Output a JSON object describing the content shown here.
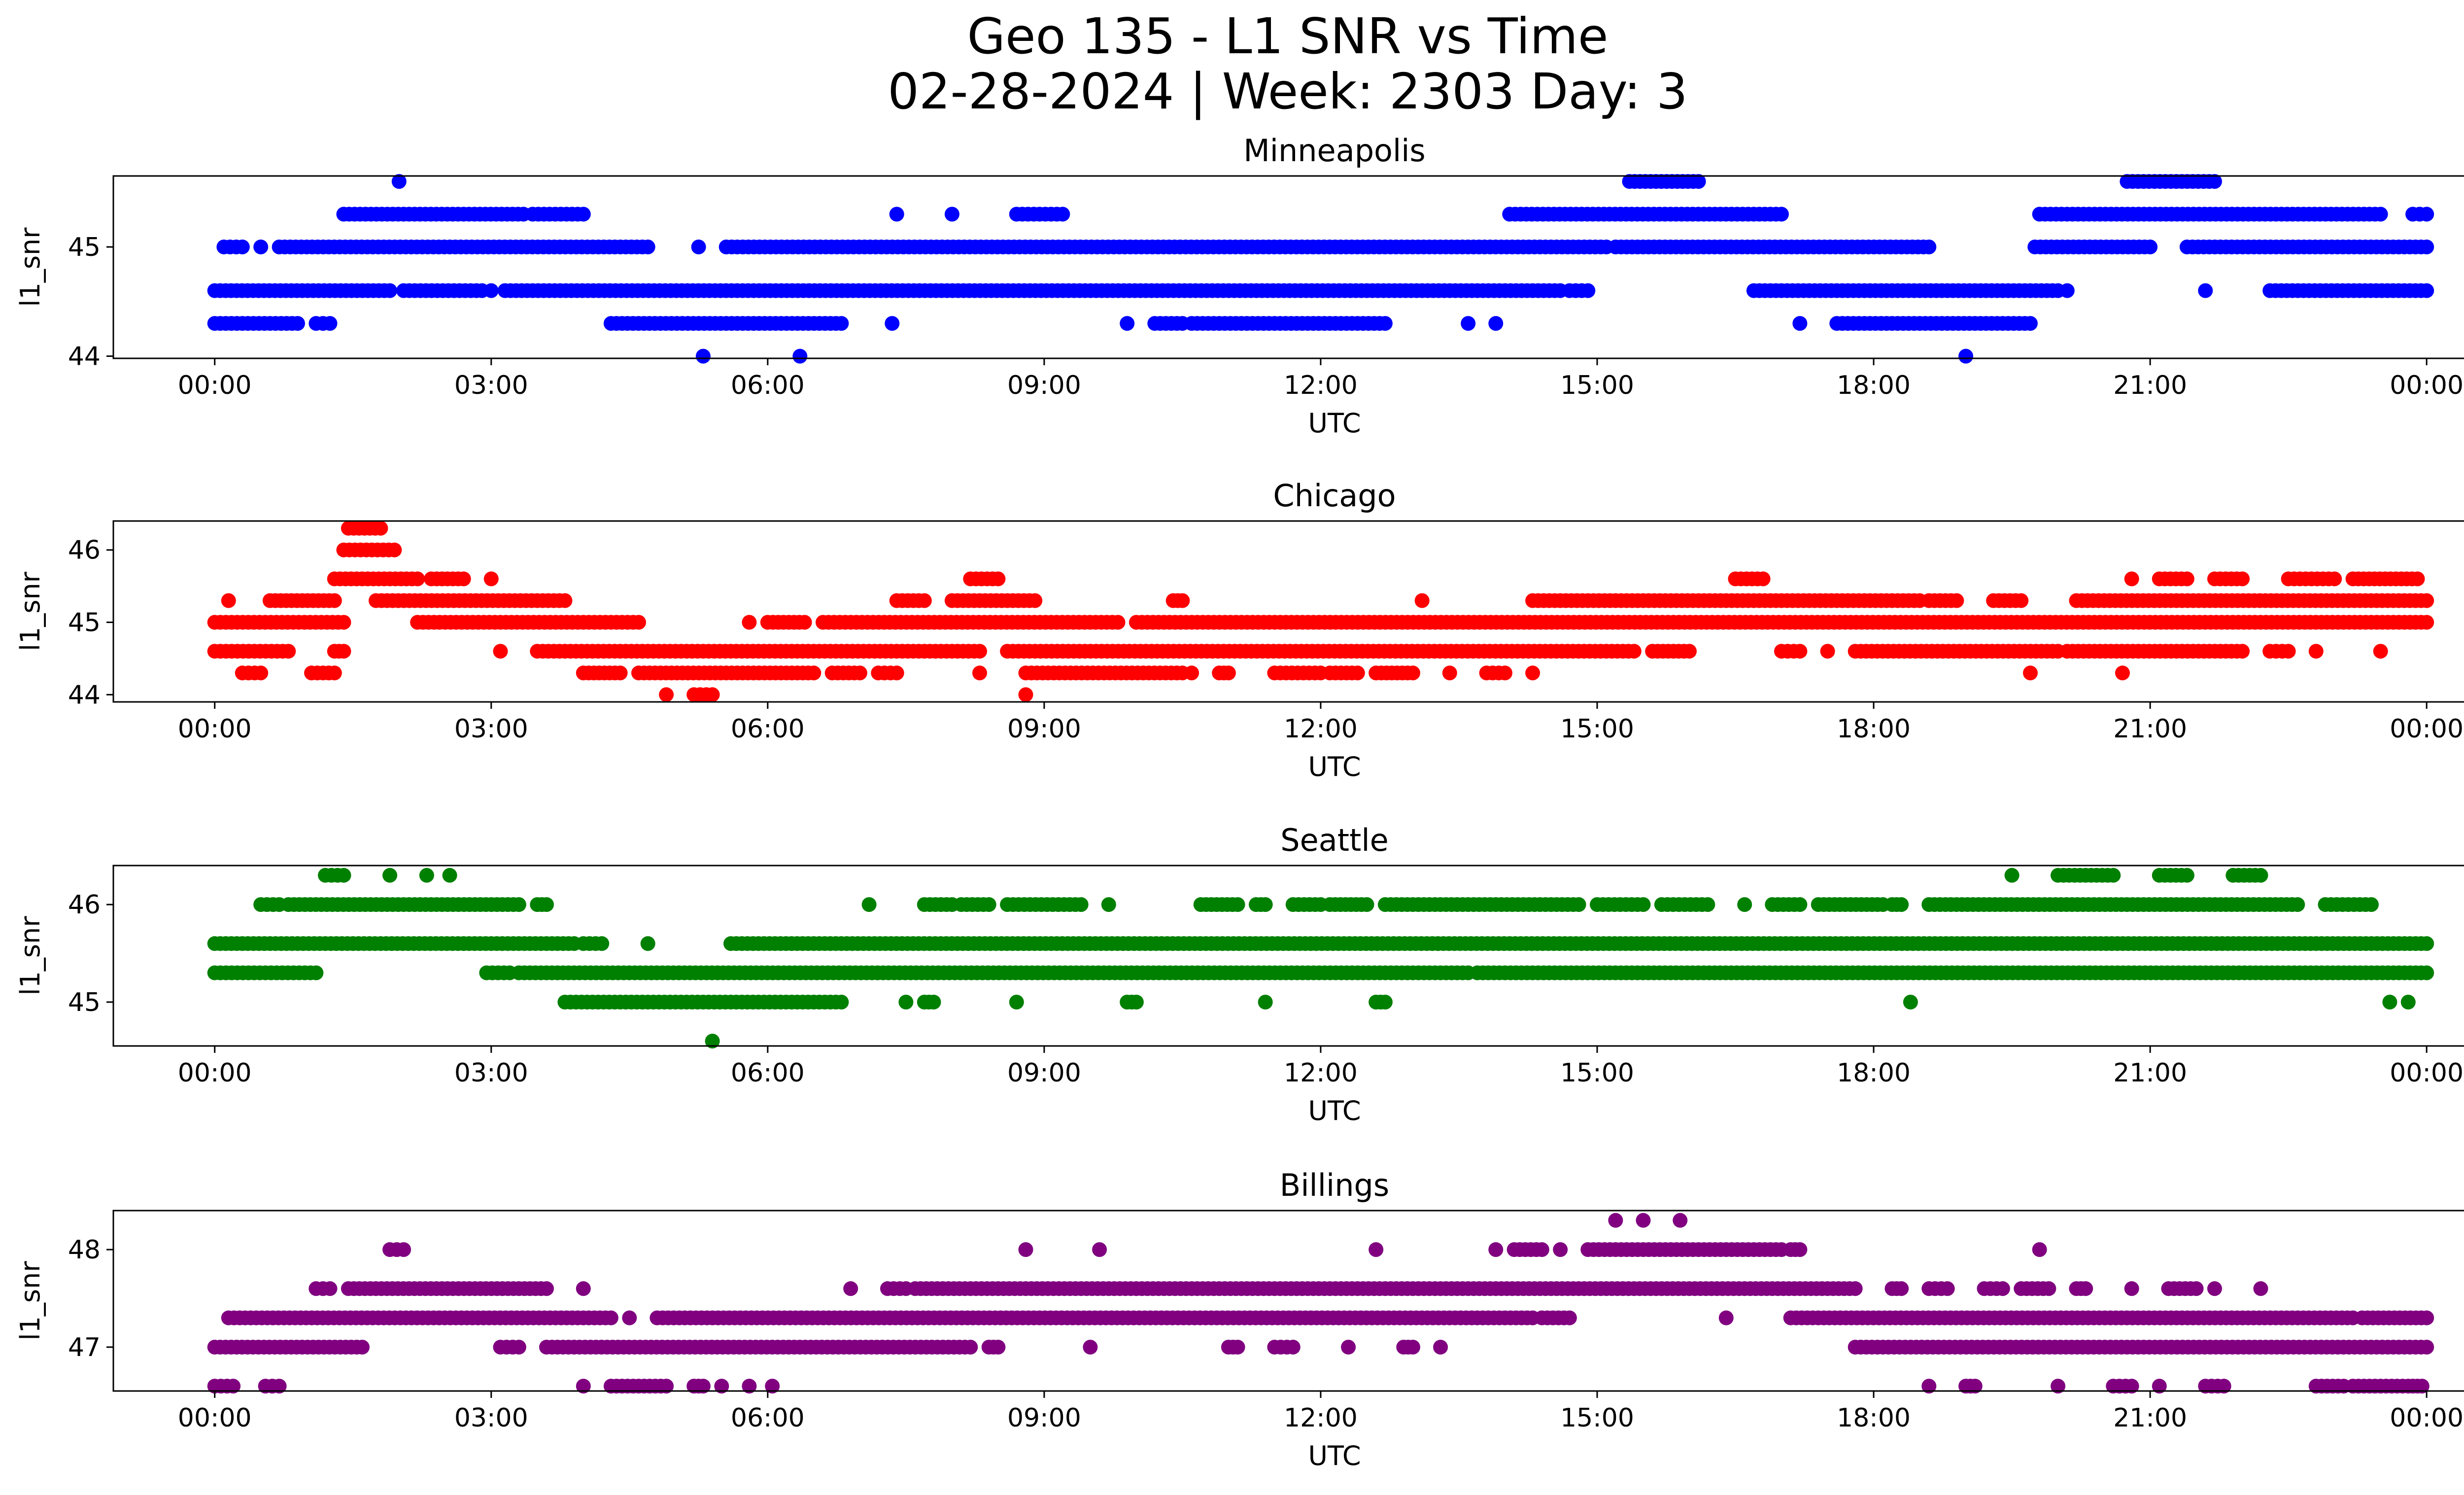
{
  "title_lines": [
    "Geo 135 - L1 SNR vs Time",
    "02-28-2024 | Week: 2303 Day: 3"
  ],
  "chart_data": [
    {
      "type": "scatter",
      "title": "Minneapolis",
      "color": "#0000ff",
      "xlabel": "UTC",
      "ylabel": "l1_snr",
      "x_unit": "hours UTC",
      "xlim": [
        -1.1,
        25.4
      ],
      "ylim": [
        43.98,
        45.65
      ],
      "x_ticks": [
        0,
        3,
        6,
        9,
        12,
        15,
        18,
        21,
        24
      ],
      "x_tick_labels": [
        "00:00",
        "03:00",
        "06:00",
        "09:00",
        "12:00",
        "15:00",
        "18:00",
        "21:00",
        "00:00"
      ],
      "y_ticks": [
        44,
        45
      ],
      "y_tick_labels": [
        "44",
        "45"
      ],
      "runs": [
        {
          "y": 45.6,
          "segments": [
            [
              2.0,
              2.0
            ],
            [
              15.35,
              16.1
            ],
            [
              20.75,
              21.7
            ]
          ]
        },
        {
          "y": 45.3,
          "segments": [
            [
              1.4,
              3.35
            ],
            [
              3.45,
              4.0
            ],
            [
              7.4,
              7.4
            ],
            [
              8.0,
              8.0
            ],
            [
              8.7,
              9.2
            ],
            [
              14.05,
              17.0
            ],
            [
              19.8,
              23.5
            ],
            [
              23.85,
              24.0
            ]
          ]
        },
        {
          "y": 45.0,
          "segments": [
            [
              0.1,
              0.3
            ],
            [
              0.5,
              0.5
            ],
            [
              0.7,
              4.7
            ],
            [
              5.25,
              5.25
            ],
            [
              5.55,
              15.1
            ],
            [
              15.2,
              18.6
            ],
            [
              19.75,
              21.0
            ],
            [
              21.4,
              24.0
            ]
          ]
        },
        {
          "y": 44.6,
          "segments": [
            [
              0.0,
              1.9
            ],
            [
              2.05,
              2.9
            ],
            [
              3.0,
              3.0
            ],
            [
              3.15,
              14.6
            ],
            [
              14.7,
              14.9
            ],
            [
              16.7,
              20.0
            ],
            [
              20.1,
              20.1
            ],
            [
              21.6,
              21.6
            ],
            [
              22.3,
              24.0
            ]
          ]
        },
        {
          "y": 44.3,
          "segments": [
            [
              0.0,
              0.9
            ],
            [
              1.1,
              1.25
            ],
            [
              4.3,
              6.8
            ],
            [
              7.35,
              7.35
            ],
            [
              9.9,
              9.9
            ],
            [
              10.2,
              10.5
            ],
            [
              10.6,
              12.7
            ],
            [
              13.6,
              13.6
            ],
            [
              13.9,
              13.9
            ],
            [
              17.2,
              17.2
            ],
            [
              17.6,
              19.7
            ]
          ]
        },
        {
          "y": 44.0,
          "segments": [
            [
              5.3,
              5.3
            ],
            [
              6.35,
              6.35
            ],
            [
              19.0,
              19.0
            ]
          ]
        }
      ]
    },
    {
      "type": "scatter",
      "title": "Chicago",
      "color": "#ff0000",
      "xlabel": "UTC",
      "ylabel": "l1_snr",
      "x_unit": "hours UTC",
      "xlim": [
        -1.1,
        25.4
      ],
      "ylim": [
        43.9,
        46.4
      ],
      "x_ticks": [
        0,
        3,
        6,
        9,
        12,
        15,
        18,
        21,
        24
      ],
      "x_tick_labels": [
        "00:00",
        "03:00",
        "06:00",
        "09:00",
        "12:00",
        "15:00",
        "18:00",
        "21:00",
        "00:00"
      ],
      "y_ticks": [
        44,
        45,
        46
      ],
      "y_tick_labels": [
        "44",
        "45",
        "46"
      ],
      "runs": [
        {
          "y": 46.3,
          "segments": [
            [
              1.45,
              1.8
            ]
          ]
        },
        {
          "y": 46.0,
          "segments": [
            [
              1.4,
              1.95
            ]
          ]
        },
        {
          "y": 45.6,
          "segments": [
            [
              1.3,
              2.2
            ],
            [
              2.35,
              2.7
            ],
            [
              3.0,
              3.0
            ],
            [
              8.2,
              8.5
            ],
            [
              16.5,
              16.8
            ],
            [
              20.8,
              20.8
            ],
            [
              21.1,
              21.4
            ],
            [
              21.7,
              22.0
            ],
            [
              22.5,
              23.0
            ],
            [
              23.2,
              23.9
            ]
          ]
        },
        {
          "y": 45.3,
          "segments": [
            [
              0.15,
              0.15
            ],
            [
              0.6,
              1.3
            ],
            [
              1.75,
              3.8
            ],
            [
              7.4,
              7.7
            ],
            [
              8.0,
              8.9
            ],
            [
              10.4,
              10.5
            ],
            [
              13.1,
              13.1
            ],
            [
              14.3,
              18.5
            ],
            [
              18.6,
              18.9
            ],
            [
              19.3,
              19.6
            ],
            [
              20.2,
              24.0
            ]
          ]
        },
        {
          "y": 45.0,
          "segments": [
            [
              0.0,
              1.4
            ],
            [
              2.2,
              4.6
            ],
            [
              5.8,
              5.8
            ],
            [
              6.0,
              6.4
            ],
            [
              6.6,
              9.8
            ],
            [
              10.0,
              24.0
            ]
          ]
        },
        {
          "y": 44.6,
          "segments": [
            [
              0.0,
              0.8
            ],
            [
              1.3,
              1.4
            ],
            [
              3.1,
              3.1
            ],
            [
              3.5,
              8.3
            ],
            [
              8.6,
              15.4
            ],
            [
              15.6,
              16.0
            ],
            [
              17.0,
              17.2
            ],
            [
              17.5,
              17.5
            ],
            [
              17.8,
              20.0
            ],
            [
              20.1,
              22.0
            ],
            [
              22.3,
              22.5
            ],
            [
              22.8,
              22.8
            ],
            [
              23.5,
              23.5
            ]
          ]
        },
        {
          "y": 44.3,
          "segments": [
            [
              0.3,
              0.5
            ],
            [
              1.05,
              1.3
            ],
            [
              4.0,
              4.4
            ],
            [
              4.6,
              6.5
            ],
            [
              6.7,
              7.0
            ],
            [
              7.2,
              7.4
            ],
            [
              8.3,
              8.3
            ],
            [
              8.8,
              10.5
            ],
            [
              10.6,
              10.6
            ],
            [
              10.9,
              11.0
            ],
            [
              11.5,
              12.0
            ],
            [
              12.1,
              12.4
            ],
            [
              12.6,
              13.0
            ],
            [
              13.4,
              13.4
            ],
            [
              13.8,
              14.0
            ],
            [
              14.3,
              14.3
            ],
            [
              19.7,
              19.7
            ],
            [
              20.7,
              20.7
            ]
          ]
        },
        {
          "y": 44.0,
          "segments": [
            [
              4.9,
              4.9
            ],
            [
              5.2,
              5.4
            ],
            [
              8.8,
              8.8
            ]
          ]
        }
      ]
    },
    {
      "type": "scatter",
      "title": "Seattle",
      "color": "#008000",
      "xlabel": "UTC",
      "ylabel": "l1_snr",
      "x_unit": "hours UTC",
      "xlim": [
        -1.1,
        25.4
      ],
      "ylim": [
        44.55,
        46.4
      ],
      "x_ticks": [
        0,
        3,
        6,
        9,
        12,
        15,
        18,
        21,
        24
      ],
      "x_tick_labels": [
        "00:00",
        "03:00",
        "06:00",
        "09:00",
        "12:00",
        "15:00",
        "18:00",
        "21:00",
        "00:00"
      ],
      "y_ticks": [
        45,
        46
      ],
      "y_tick_labels": [
        "45",
        "46"
      ],
      "runs": [
        {
          "y": 46.3,
          "segments": [
            [
              1.2,
              1.4
            ],
            [
              1.9,
              1.9
            ],
            [
              2.3,
              2.3
            ],
            [
              2.55,
              2.55
            ],
            [
              19.5,
              19.5
            ],
            [
              20.0,
              20.6
            ],
            [
              21.1,
              21.4
            ],
            [
              21.9,
              22.2
            ]
          ]
        },
        {
          "y": 46.0,
          "segments": [
            [
              0.5,
              0.7
            ],
            [
              0.8,
              3.3
            ],
            [
              3.5,
              3.6
            ],
            [
              7.1,
              7.1
            ],
            [
              7.7,
              8.0
            ],
            [
              8.1,
              8.4
            ],
            [
              8.6,
              9.4
            ],
            [
              9.7,
              9.7
            ],
            [
              10.7,
              11.1
            ],
            [
              11.3,
              11.4
            ],
            [
              11.7,
              12.0
            ],
            [
              12.1,
              12.5
            ],
            [
              12.7,
              14.8
            ],
            [
              15.0,
              15.5
            ],
            [
              15.7,
              16.2
            ],
            [
              16.6,
              16.6
            ],
            [
              16.9,
              17.2
            ],
            [
              17.4,
              18.1
            ],
            [
              18.2,
              18.3
            ],
            [
              18.6,
              22.6
            ],
            [
              22.9,
              23.4
            ]
          ]
        },
        {
          "y": 45.6,
          "segments": [
            [
              0.0,
              3.9
            ],
            [
              4.0,
              4.2
            ],
            [
              4.7,
              4.7
            ],
            [
              5.6,
              24.0
            ]
          ]
        },
        {
          "y": 45.3,
          "segments": [
            [
              0.0,
              1.1
            ],
            [
              2.95,
              3.2
            ],
            [
              3.3,
              13.6
            ],
            [
              13.7,
              24.0
            ]
          ]
        },
        {
          "y": 45.0,
          "segments": [
            [
              3.8,
              6.8
            ],
            [
              7.5,
              7.5
            ],
            [
              7.7,
              7.8
            ],
            [
              8.7,
              8.7
            ],
            [
              9.9,
              10.0
            ],
            [
              11.4,
              11.4
            ],
            [
              12.6,
              12.7
            ],
            [
              18.4,
              18.4
            ],
            [
              23.6,
              23.6
            ],
            [
              23.8,
              23.8
            ]
          ]
        },
        {
          "y": 44.6,
          "segments": [
            [
              5.4,
              5.4
            ]
          ]
        }
      ]
    },
    {
      "type": "scatter",
      "title": "Billings",
      "color": "#800080",
      "xlabel": "UTC",
      "ylabel": "l1_snr",
      "x_unit": "hours UTC",
      "xlim": [
        -1.1,
        25.4
      ],
      "ylim": [
        46.55,
        48.4
      ],
      "x_ticks": [
        0,
        3,
        6,
        9,
        12,
        15,
        18,
        21,
        24
      ],
      "x_tick_labels": [
        "00:00",
        "03:00",
        "06:00",
        "09:00",
        "12:00",
        "15:00",
        "18:00",
        "21:00",
        "00:00"
      ],
      "y_ticks": [
        47,
        48
      ],
      "y_tick_labels": [
        "47",
        "48"
      ],
      "runs": [
        {
          "y": 48.3,
          "segments": [
            [
              15.2,
              15.2
            ],
            [
              15.5,
              15.5
            ],
            [
              15.9,
              15.9
            ]
          ]
        },
        {
          "y": 48.0,
          "segments": [
            [
              1.9,
              2.05
            ],
            [
              8.8,
              8.8
            ],
            [
              9.6,
              9.6
            ],
            [
              12.6,
              12.6
            ],
            [
              13.9,
              13.9
            ],
            [
              14.1,
              14.4
            ],
            [
              14.6,
              14.6
            ],
            [
              14.9,
              17.0
            ],
            [
              17.1,
              17.2
            ],
            [
              19.8,
              19.8
            ]
          ]
        },
        {
          "y": 47.6,
          "segments": [
            [
              1.1,
              1.25
            ],
            [
              1.45,
              3.6
            ],
            [
              4.0,
              4.0
            ],
            [
              6.9,
              6.9
            ],
            [
              7.3,
              7.5
            ],
            [
              7.6,
              17.8
            ],
            [
              18.2,
              18.3
            ],
            [
              18.6,
              18.8
            ],
            [
              19.2,
              19.4
            ],
            [
              19.6,
              19.9
            ],
            [
              20.2,
              20.3
            ],
            [
              20.8,
              20.8
            ],
            [
              21.2,
              21.5
            ],
            [
              21.7,
              21.7
            ],
            [
              22.2,
              22.2
            ]
          ]
        },
        {
          "y": 47.3,
          "segments": [
            [
              0.15,
              4.3
            ],
            [
              4.5,
              4.5
            ],
            [
              4.8,
              14.3
            ],
            [
              14.4,
              14.7
            ],
            [
              16.4,
              16.4
            ],
            [
              17.1,
              23.2
            ],
            [
              23.3,
              24.0
            ]
          ]
        },
        {
          "y": 47.0,
          "segments": [
            [
              0.0,
              1.6
            ],
            [
              3.1,
              3.3
            ],
            [
              3.6,
              8.2
            ],
            [
              8.4,
              8.5
            ],
            [
              9.5,
              9.5
            ],
            [
              11.0,
              11.1
            ],
            [
              11.5,
              11.7
            ],
            [
              12.3,
              12.3
            ],
            [
              12.9,
              13.0
            ],
            [
              13.3,
              13.3
            ],
            [
              17.8,
              24.0
            ]
          ]
        },
        {
          "y": 46.6,
          "segments": [
            [
              0.0,
              0.2
            ],
            [
              0.55,
              0.7
            ],
            [
              4.0,
              4.0
            ],
            [
              4.3,
              4.9
            ],
            [
              5.2,
              5.3
            ],
            [
              5.5,
              5.5
            ],
            [
              5.8,
              5.8
            ],
            [
              6.05,
              6.05
            ],
            [
              18.6,
              18.6
            ],
            [
              19.0,
              19.1
            ],
            [
              20.0,
              20.0
            ],
            [
              20.6,
              20.8
            ],
            [
              21.1,
              21.1
            ],
            [
              21.6,
              21.8
            ],
            [
              22.8,
              23.1
            ],
            [
              23.2,
              23.8
            ],
            [
              23.85,
              23.95
            ]
          ]
        }
      ]
    }
  ]
}
